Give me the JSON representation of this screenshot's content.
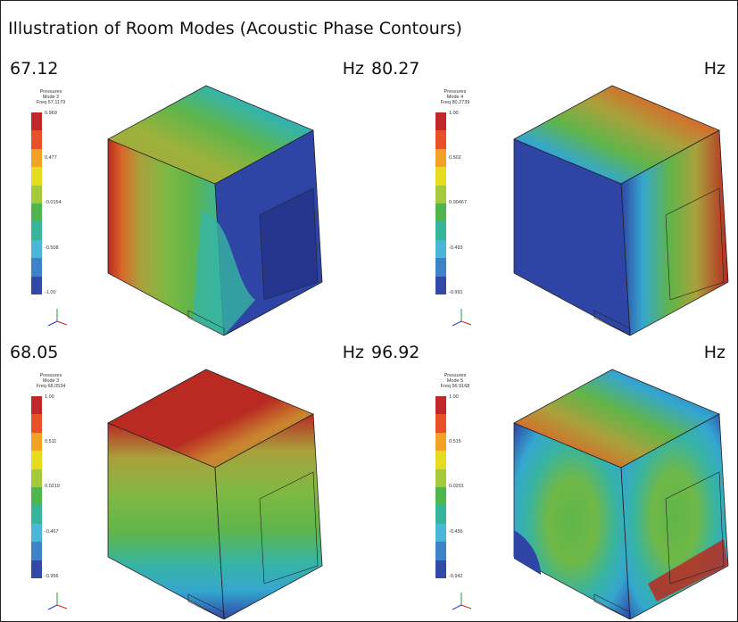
{
  "title": "Illustration of Room Modes (Acoustic Phase Contours)",
  "panels": [
    {
      "frequency": "67.12",
      "unit": "Hz",
      "legend": {
        "line1": "Pressures",
        "line2": "Mode 2",
        "line3": "Freq 67.1179",
        "ticks": [
          "0.969",
          "0.477",
          "-0.0154",
          "-0.508",
          "-1.00"
        ]
      }
    },
    {
      "frequency": "80.27",
      "unit": "Hz",
      "legend": {
        "line1": "Pressures",
        "line2": "Mode 4",
        "line3": "Freq 80.2739",
        "ticks": [
          "1.00",
          "0.502",
          "0.00467",
          "-0.493",
          "-0.991"
        ]
      }
    },
    {
      "frequency": "68.05",
      "unit": "Hz",
      "legend": {
        "line1": "Pressures",
        "line2": "Mode 3",
        "line3": "Freq 68.0534",
        "ticks": [
          "1.00",
          "0.511",
          "0.0219",
          "-0.467",
          "-0.956"
        ]
      }
    },
    {
      "frequency": "96.92",
      "unit": "Hz",
      "legend": {
        "line1": "Pressures",
        "line2": "Mode 5",
        "line3": "Freq 96.9168",
        "ticks": [
          "1.00",
          "0.515",
          "0.0291",
          "-0.456",
          "-0.942"
        ]
      }
    }
  ],
  "colors": {
    "scale": [
      "#c0282c",
      "#e8502a",
      "#f3a324",
      "#e6dc1f",
      "#a6c93a",
      "#4fb64d",
      "#36b59a",
      "#4bb6d8",
      "#3c84c7",
      "#3249a8"
    ],
    "red": "#b82a22",
    "orange": "#d9692a",
    "olive": "#a9a13c",
    "green": "#5fb54a",
    "teal": "#37b4a2",
    "cyan": "#35a6cf",
    "blue": "#2f45a6",
    "navy": "#26368f"
  }
}
